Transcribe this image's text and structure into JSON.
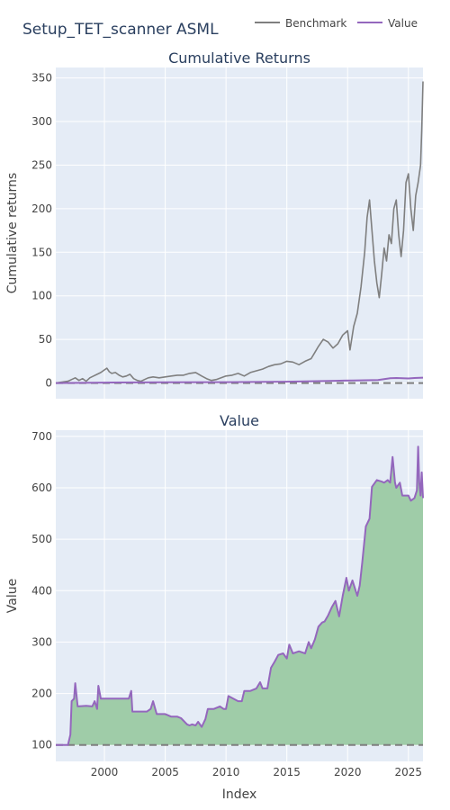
{
  "title": "Setup_TET_scanner ASML",
  "colors": {
    "benchmark": "#7f7f7f",
    "value": "#9467bd",
    "fill": "#9fcca8",
    "plot_bg": "#e5ecf6",
    "grid": "#ffffff",
    "baseline_dash": "#7f7f7f"
  },
  "legend": [
    {
      "label": "Benchmark",
      "color": "#7f7f7f"
    },
    {
      "label": "Value",
      "color": "#9467bd"
    }
  ],
  "x_tick_labels": [
    "2000",
    "2005",
    "2010",
    "2015",
    "2020",
    "2025"
  ],
  "xlabel": "Index",
  "chart_data": [
    {
      "type": "line",
      "title": "Cumulative Returns",
      "ylabel": "Cumulative returns",
      "xlim": [
        1996.0,
        2026.2
      ],
      "ylim": [
        -18,
        362
      ],
      "yticks": [
        0,
        50,
        100,
        150,
        200,
        250,
        300,
        350
      ],
      "baseline": 0,
      "grid": true,
      "legend_position": "top-right",
      "series": [
        {
          "name": "Benchmark",
          "x": [
            1996.0,
            1996.5,
            1997.0,
            1997.3,
            1997.6,
            1997.9,
            1998.2,
            1998.5,
            1998.8,
            1999.1,
            1999.4,
            1999.7,
            2000.0,
            2000.2,
            2000.4,
            2000.6,
            2000.9,
            2001.2,
            2001.5,
            2001.8,
            2002.1,
            2002.4,
            2002.7,
            2003.0,
            2003.3,
            2003.6,
            2004.0,
            2004.5,
            2005.0,
            2005.5,
            2006.0,
            2006.5,
            2007.0,
            2007.5,
            2008.0,
            2008.4,
            2008.8,
            2009.2,
            2009.6,
            2010.0,
            2010.5,
            2011.0,
            2011.5,
            2012.0,
            2012.5,
            2013.0,
            2013.5,
            2014.0,
            2014.5,
            2015.0,
            2015.5,
            2016.0,
            2016.5,
            2017.0,
            2017.3,
            2017.6,
            2018.0,
            2018.4,
            2018.8,
            2019.2,
            2019.6,
            2020.0,
            2020.2,
            2020.5,
            2020.8,
            2021.1,
            2021.4,
            2021.6,
            2021.8,
            2022.0,
            2022.2,
            2022.4,
            2022.6,
            2022.8,
            2023.0,
            2023.2,
            2023.4,
            2023.6,
            2023.8,
            2024.0,
            2024.2,
            2024.4,
            2024.6,
            2024.8,
            2025.0,
            2025.2,
            2025.4,
            2025.6,
            2025.8,
            2026.0,
            2026.1,
            2026.2
          ],
          "values": [
            0,
            1,
            2,
            4,
            6,
            3,
            5,
            2,
            6,
            8,
            10,
            12,
            15,
            17,
            13,
            11,
            12,
            9,
            7,
            8,
            10,
            5,
            3,
            2,
            4,
            6,
            7,
            6,
            7,
            8,
            9,
            9,
            11,
            12,
            8,
            5,
            3,
            4,
            6,
            8,
            9,
            11,
            8,
            12,
            14,
            16,
            19,
            21,
            22,
            25,
            24,
            21,
            25,
            28,
            35,
            42,
            50,
            47,
            40,
            45,
            55,
            60,
            38,
            65,
            80,
            110,
            150,
            190,
            210,
            175,
            140,
            115,
            98,
            125,
            155,
            140,
            170,
            160,
            200,
            210,
            170,
            145,
            175,
            230,
            240,
            200,
            175,
            215,
            230,
            250,
            290,
            346
          ]
        },
        {
          "name": "Value",
          "x": [
            1996.0,
            2000.0,
            2005.0,
            2010.0,
            2015.0,
            2017.0,
            2019.0,
            2020.5,
            2021.5,
            2022.5,
            2023.0,
            2023.5,
            2024.0,
            2024.5,
            2025.0,
            2025.5,
            2026.2
          ],
          "values": [
            0,
            0.5,
            0.8,
            1.0,
            1.5,
            2.0,
            2.5,
            3.0,
            3.2,
            3.5,
            4.5,
            5.5,
            5.8,
            5.4,
            5.2,
            5.8,
            6.2
          ]
        }
      ]
    },
    {
      "type": "area",
      "title": "Value",
      "ylabel": "Value",
      "xlabel": "Index",
      "xlim": [
        1996.0,
        2026.2
      ],
      "ylim": [
        68,
        712
      ],
      "yticks": [
        100,
        200,
        300,
        400,
        500,
        600,
        700
      ],
      "baseline": 100,
      "grid": true,
      "series": [
        {
          "name": "Value",
          "x": [
            1996.0,
            1997.0,
            1997.2,
            1997.3,
            1997.5,
            1997.6,
            1997.8,
            1998.5,
            1999.0,
            1999.2,
            1999.4,
            1999.5,
            1999.7,
            2002.0,
            2002.2,
            2002.3,
            2002.5,
            2003.5,
            2003.8,
            2004.0,
            2004.3,
            2005.0,
            2005.5,
            2006.0,
            2006.3,
            2006.8,
            2007.0,
            2007.2,
            2007.5,
            2007.7,
            2008.0,
            2008.3,
            2008.5,
            2009.0,
            2009.5,
            2009.8,
            2010.0,
            2010.2,
            2011.0,
            2011.3,
            2011.5,
            2012.0,
            2012.5,
            2012.8,
            2013.0,
            2013.4,
            2013.7,
            2014.0,
            2014.3,
            2014.7,
            2015.0,
            2015.2,
            2015.5,
            2016.0,
            2016.5,
            2016.8,
            2017.0,
            2017.3,
            2017.6,
            2017.9,
            2018.1,
            2018.4,
            2018.7,
            2019.0,
            2019.3,
            2019.6,
            2019.9,
            2020.1,
            2020.4,
            2020.8,
            2021.0,
            2021.2,
            2021.5,
            2021.8,
            2022.0,
            2022.4,
            2022.8,
            2023.0,
            2023.3,
            2023.5,
            2023.7,
            2023.9,
            2024.0,
            2024.3,
            2024.5,
            2024.8,
            2025.0,
            2025.2,
            2025.5,
            2025.7,
            2025.8,
            2025.9,
            2026.0,
            2026.1,
            2026.2
          ],
          "values": [
            100,
            100,
            120,
            185,
            190,
            220,
            175,
            176,
            175,
            185,
            170,
            215,
            190,
            190,
            205,
            165,
            165,
            165,
            170,
            185,
            160,
            160,
            155,
            155,
            152,
            140,
            138,
            140,
            138,
            145,
            135,
            150,
            170,
            170,
            175,
            170,
            170,
            195,
            185,
            185,
            205,
            205,
            210,
            222,
            210,
            210,
            250,
            262,
            275,
            278,
            268,
            295,
            278,
            282,
            278,
            300,
            288,
            305,
            330,
            338,
            340,
            352,
            368,
            380,
            350,
            390,
            425,
            400,
            420,
            390,
            410,
            455,
            525,
            540,
            602,
            615,
            612,
            610,
            615,
            610,
            660,
            610,
            600,
            610,
            585,
            585,
            585,
            575,
            580,
            595,
            680,
            610,
            585,
            630,
            580
          ]
        }
      ]
    }
  ]
}
